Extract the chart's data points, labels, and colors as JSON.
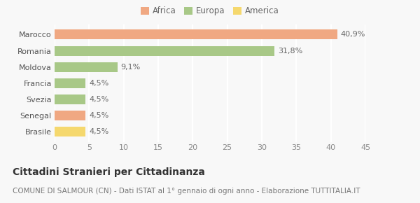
{
  "categories": [
    "Brasile",
    "Senegal",
    "Svezia",
    "Francia",
    "Moldova",
    "Romania",
    "Marocco"
  ],
  "values": [
    4.5,
    4.5,
    4.5,
    4.5,
    9.1,
    31.8,
    40.9
  ],
  "colors": [
    "#f5d86e",
    "#f0a882",
    "#a8c887",
    "#a8c887",
    "#a8c887",
    "#a8c887",
    "#f0a882"
  ],
  "labels": [
    "4,5%",
    "4,5%",
    "4,5%",
    "4,5%",
    "9,1%",
    "31,8%",
    "40,9%"
  ],
  "legend_items": [
    {
      "label": "Africa",
      "color": "#f0a882"
    },
    {
      "label": "Europa",
      "color": "#a8c887"
    },
    {
      "label": "America",
      "color": "#f5d86e"
    }
  ],
  "xlim": [
    0,
    45
  ],
  "xticks": [
    0,
    5,
    10,
    15,
    20,
    25,
    30,
    35,
    40,
    45
  ],
  "title_main": "Cittadini Stranieri per Cittadinanza",
  "title_sub": "COMUNE DI SALMOUR (CN) - Dati ISTAT al 1° gennaio di ogni anno - Elaborazione TUTTITALIA.IT",
  "background_color": "#f8f8f8",
  "grid_color": "#ffffff",
  "bar_height": 0.6,
  "label_fontsize": 8,
  "tick_fontsize": 8,
  "ytick_fontsize": 8,
  "title_main_fontsize": 10,
  "title_sub_fontsize": 7.5
}
